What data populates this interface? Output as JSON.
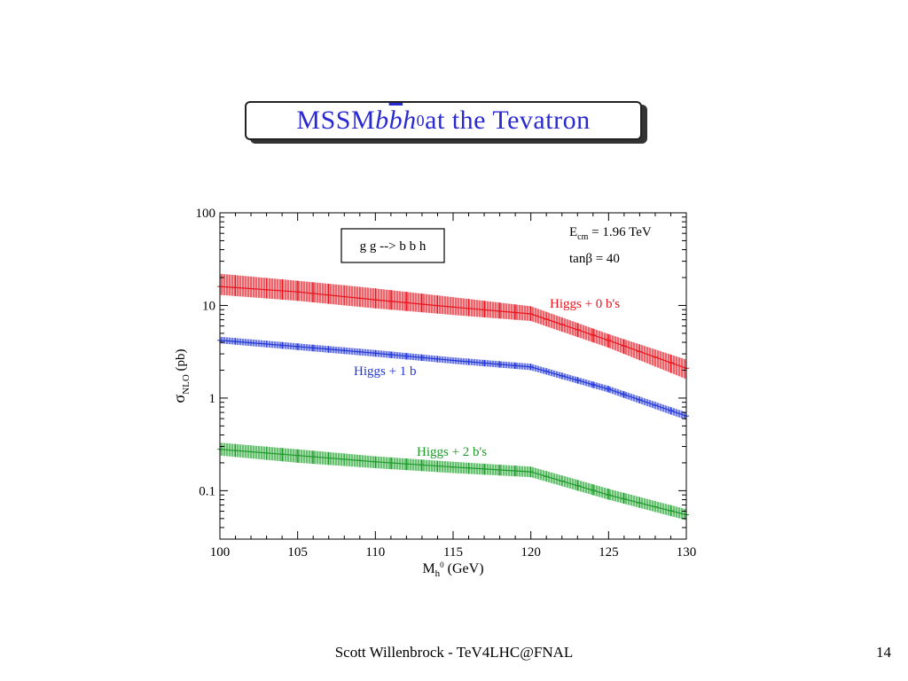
{
  "slide": {
    "title_prefix": "MSSM ",
    "title_b1": "b",
    "title_b2": "b",
    "title_h": "h",
    "title_sup": "0",
    "title_suffix": " at the Tevatron",
    "footer": "Scott Willenbrock - TeV4LHC@FNAL",
    "page_number": "14"
  },
  "chart_data": {
    "type": "line",
    "process_label": "g g --> b b h",
    "annotation_ecm": "E",
    "annotation_ecm_sub": "cm",
    "annotation_ecm_value": " = 1.96 TeV",
    "annotation_tanb": "tanβ = 40",
    "xlabel_main": "M",
    "xlabel_sub": "h",
    "xlabel_sup": "0",
    "xlabel_unit": " (GeV)",
    "ylabel_main": "σ",
    "ylabel_sub": "NLO",
    "ylabel_unit": " (pb)",
    "xlim": [
      100,
      130
    ],
    "ylim": [
      0.03,
      100
    ],
    "yscale": "log",
    "x_ticks": [
      100,
      105,
      110,
      115,
      120,
      125,
      130
    ],
    "x_tick_labels": [
      "100",
      "105",
      "110",
      "115",
      "120",
      "125",
      "130"
    ],
    "y_ticks": [
      0.1,
      1,
      10,
      100
    ],
    "y_tick_labels": [
      "0.1",
      "1",
      "10",
      "100"
    ],
    "series": [
      {
        "name": "Higgs + 0 b's",
        "color": "#e8141e",
        "x": [
          100,
          105,
          110,
          115,
          120,
          125,
          130
        ],
        "y_low": [
          13,
          11.2,
          9.3,
          7.9,
          6.8,
          3.5,
          1.6
        ],
        "y_high": [
          22,
          18.5,
          15.3,
          12.3,
          9.8,
          4.9,
          2.6
        ],
        "y_center": [
          16,
          14,
          11.5,
          9.6,
          8.1,
          4.2,
          2.1
        ]
      },
      {
        "name": "Higgs + 1 b",
        "color": "#2236d8",
        "x": [
          100,
          105,
          110,
          115,
          120,
          125,
          130
        ],
        "y_low": [
          3.9,
          3.3,
          2.8,
          2.35,
          2.0,
          1.15,
          0.58
        ],
        "y_high": [
          4.6,
          3.9,
          3.3,
          2.75,
          2.35,
          1.35,
          0.7
        ],
        "y_center": [
          4.2,
          3.6,
          3.05,
          2.55,
          2.17,
          1.25,
          0.64
        ]
      },
      {
        "name": "Higgs + 2 b's",
        "color": "#1e9a2a",
        "x": [
          100,
          105,
          110,
          115,
          120,
          125,
          130
        ],
        "y_low": [
          0.24,
          0.2,
          0.175,
          0.155,
          0.14,
          0.08,
          0.048
        ],
        "y_high": [
          0.33,
          0.28,
          0.235,
          0.205,
          0.182,
          0.105,
          0.063
        ],
        "y_center": [
          0.28,
          0.24,
          0.205,
          0.18,
          0.16,
          0.09,
          0.055
        ]
      }
    ],
    "legend_placement": "inline labels"
  }
}
